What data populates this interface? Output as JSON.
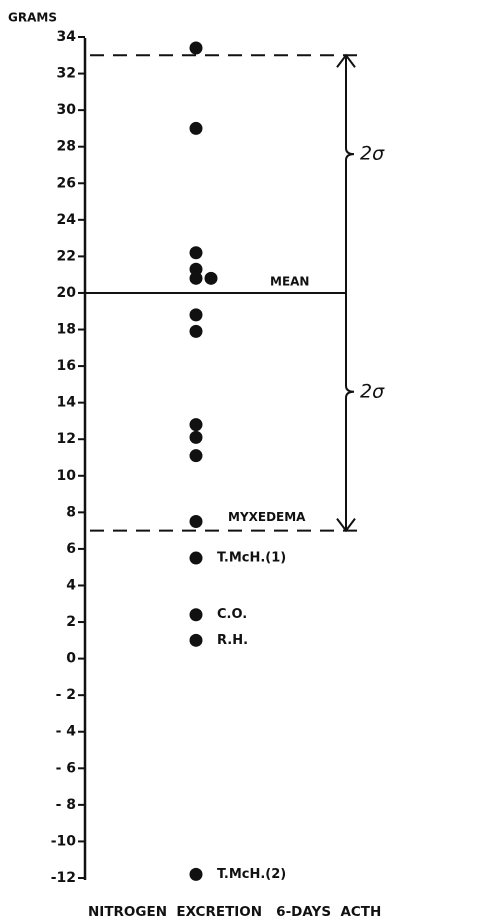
{
  "chart_data": {
    "type": "dotplot",
    "y_label": "GRAMS",
    "x_label": "NITROGEN  EXCRETION   6-DAYS  ACTH",
    "ylim": [
      -12,
      34
    ],
    "yticks": [
      {
        "value": -12,
        "label": "-12"
      },
      {
        "value": -10,
        "label": "-10"
      },
      {
        "value": -8,
        "label": "- 8"
      },
      {
        "value": -6,
        "label": "- 6"
      },
      {
        "value": -4,
        "label": "- 4"
      },
      {
        "value": -2,
        "label": "- 2"
      },
      0,
      2,
      4,
      6,
      8,
      10,
      12,
      14,
      16,
      18,
      20,
      22,
      24,
      26,
      28,
      30,
      32,
      34
    ],
    "values": [
      33.4,
      29,
      22.2,
      21.3,
      20.8,
      20.8,
      18.8,
      17.9,
      12.8,
      12.1,
      11.1,
      7.5,
      5.5,
      2.4,
      1,
      -11.8
    ],
    "color": "#111111",
    "mean": 20,
    "mean_label": "MEAN",
    "range_lines": [
      33,
      7
    ],
    "lower_label": "MYXEDEMA",
    "sigma_label": "2σ",
    "point_annotations": [
      {
        "text": "T.McH.(1)",
        "value": 5.5
      },
      {
        "text": "C.O.",
        "value": 2.4
      },
      {
        "text": "R.H.",
        "value": 1
      },
      {
        "text": "T.McH.(2)",
        "value": -11.8
      }
    ]
  }
}
